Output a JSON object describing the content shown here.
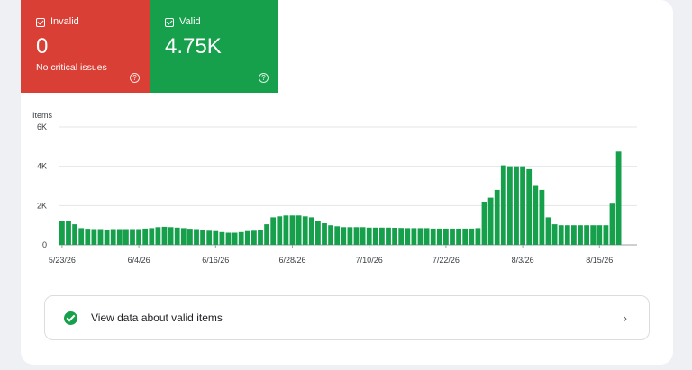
{
  "tiles": {
    "invalid": {
      "label": "Invalid",
      "value": "0",
      "sub": "No critical issues",
      "color": "#d93f34"
    },
    "valid": {
      "label": "Valid",
      "value": "4.75K",
      "color": "#16a04c"
    }
  },
  "link": {
    "label": "View data about valid items"
  },
  "chart_data": {
    "type": "bar",
    "ylabel": "Items",
    "ylim": [
      0,
      6000
    ],
    "yticks": [
      "0",
      "2K",
      "4K",
      "6K"
    ],
    "ytick_values": [
      0,
      2000,
      4000,
      6000
    ],
    "xtick_labels": [
      "5/23/26",
      "6/4/26",
      "6/16/26",
      "6/28/26",
      "7/10/26",
      "7/22/26",
      "8/3/26",
      "8/15/26"
    ],
    "xtick_indices": [
      0,
      12,
      24,
      36,
      48,
      60,
      72,
      84
    ],
    "color": "#16a04c",
    "values": [
      1200,
      1200,
      1050,
      850,
      820,
      800,
      800,
      780,
      800,
      800,
      800,
      800,
      800,
      830,
      850,
      900,
      920,
      900,
      880,
      850,
      820,
      800,
      750,
      720,
      700,
      650,
      620,
      620,
      650,
      700,
      720,
      750,
      1050,
      1400,
      1450,
      1500,
      1500,
      1500,
      1450,
      1400,
      1200,
      1100,
      1000,
      950,
      900,
      900,
      900,
      900,
      880,
      880,
      880,
      880,
      870,
      860,
      850,
      850,
      850,
      850,
      830,
      830,
      830,
      830,
      830,
      830,
      830,
      850,
      2200,
      2400,
      2800,
      4050,
      4000,
      4000,
      4000,
      3850,
      3000,
      2800,
      1400,
      1050,
      1000,
      1000,
      1000,
      1000,
      1000,
      1000,
      1000,
      1000,
      2100,
      4750
    ]
  }
}
